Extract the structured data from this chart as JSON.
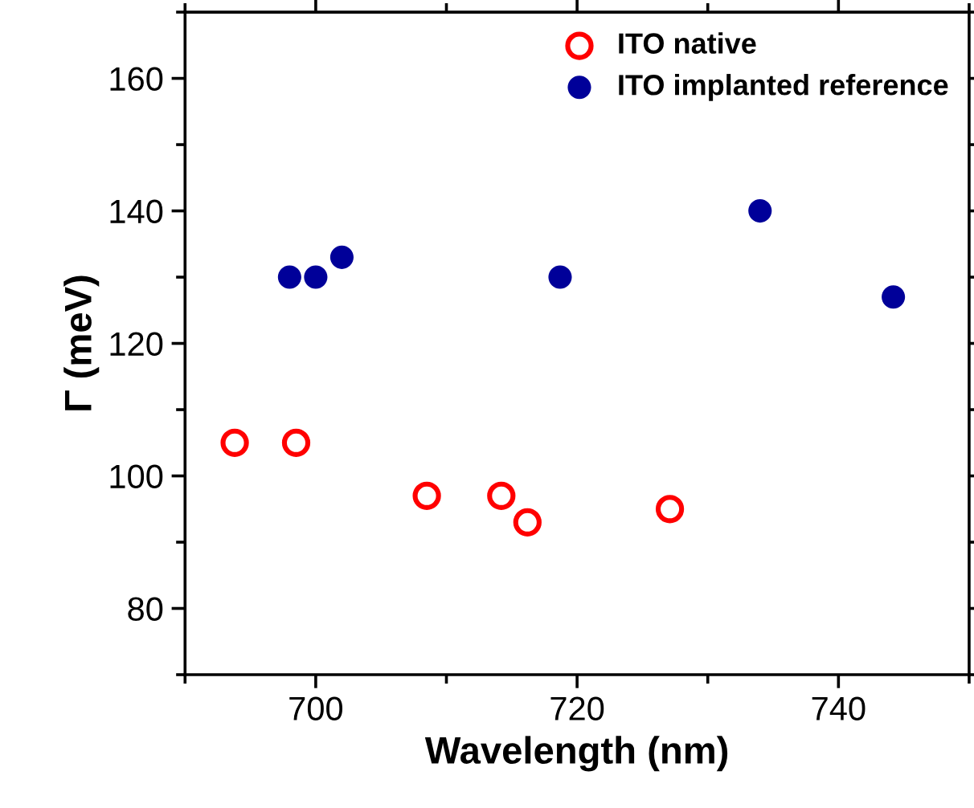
{
  "chart_data": {
    "type": "scatter",
    "xlabel": "Wavelength (nm)",
    "ylabel": "Γ (meV)",
    "xlim": [
      690,
      750
    ],
    "xticks": [
      700,
      720,
      740
    ],
    "ylim": [
      70,
      170
    ],
    "yticks": [
      80,
      100,
      120,
      140,
      160
    ],
    "legend": "top right",
    "grid": false,
    "marker": "circle",
    "series": [
      {
        "name": "ITO native",
        "color": "#ff0000",
        "x": [
          693.8,
          698.5,
          708.5,
          714.2,
          716.2,
          727.1
        ],
        "values": [
          105,
          105,
          97,
          97,
          93,
          95
        ]
      },
      {
        "name": "ITO implanted reference",
        "color": "#000099",
        "x": [
          698.0,
          700.0,
          702.0,
          718.7,
          734.0,
          744.2
        ],
        "values": [
          130,
          130,
          133,
          130,
          140,
          127
        ]
      }
    ]
  }
}
